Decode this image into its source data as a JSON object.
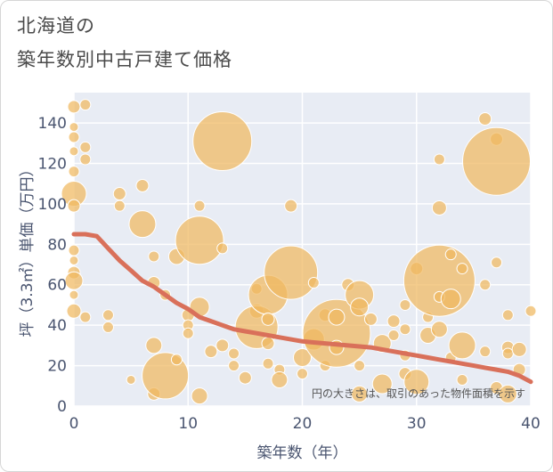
{
  "title_line1": "北海道の",
  "title_line2": "築年数別中古戸建て価格",
  "colors": {
    "bubble": "#f0b860",
    "line": "#d9705a",
    "plot_bg": "#e8ecf4",
    "grid": "#ffffff",
    "axis_text": "#4a5570"
  },
  "chart_data": {
    "type": "scatter",
    "xlabel": "築年数（年）",
    "ylabel": "坪（3.3㎡）単価（万円）",
    "xlim": [
      0,
      40
    ],
    "ylim": [
      0,
      155
    ],
    "xticks": [
      "0",
      "10",
      "20",
      "30",
      "40"
    ],
    "yticks": [
      "0",
      "20",
      "40",
      "60",
      "80",
      "100",
      "120",
      "140"
    ],
    "note": "円の大きさは、取引のあった物件面積を示す",
    "bubbles": [
      {
        "x": 0,
        "y": 148,
        "r": 7
      },
      {
        "x": 1,
        "y": 149,
        "r": 6
      },
      {
        "x": 0,
        "y": 138,
        "r": 5
      },
      {
        "x": 0,
        "y": 133,
        "r": 6
      },
      {
        "x": 1,
        "y": 128,
        "r": 6
      },
      {
        "x": 0,
        "y": 126,
        "r": 5
      },
      {
        "x": 1,
        "y": 122,
        "r": 6
      },
      {
        "x": 0,
        "y": 116,
        "r": 6
      },
      {
        "x": 0,
        "y": 105,
        "r": 14
      },
      {
        "x": 0,
        "y": 99,
        "r": 7
      },
      {
        "x": 0,
        "y": 77,
        "r": 6
      },
      {
        "x": 0,
        "y": 72,
        "r": 5
      },
      {
        "x": 0,
        "y": 66,
        "r": 7
      },
      {
        "x": 0,
        "y": 62,
        "r": 10
      },
      {
        "x": 0,
        "y": 47,
        "r": 8
      },
      {
        "x": 1,
        "y": 44,
        "r": 6
      },
      {
        "x": 0,
        "y": 55,
        "r": 5
      },
      {
        "x": 3,
        "y": 45,
        "r": 6
      },
      {
        "x": 3,
        "y": 39,
        "r": 6
      },
      {
        "x": 4,
        "y": 105,
        "r": 7
      },
      {
        "x": 4,
        "y": 99,
        "r": 6
      },
      {
        "x": 6,
        "y": 109,
        "r": 7
      },
      {
        "x": 6,
        "y": 90,
        "r": 15
      },
      {
        "x": 7,
        "y": 74,
        "r": 6
      },
      {
        "x": 7,
        "y": 61,
        "r": 7
      },
      {
        "x": 8,
        "y": 55,
        "r": 6
      },
      {
        "x": 5,
        "y": 13,
        "r": 5
      },
      {
        "x": 7,
        "y": 30,
        "r": 9
      },
      {
        "x": 7,
        "y": 6,
        "r": 7
      },
      {
        "x": 8,
        "y": 15,
        "r": 26
      },
      {
        "x": 9,
        "y": 74,
        "r": 9
      },
      {
        "x": 9,
        "y": 23,
        "r": 6
      },
      {
        "x": 10,
        "y": 45,
        "r": 7
      },
      {
        "x": 10,
        "y": 40,
        "r": 6
      },
      {
        "x": 10,
        "y": 36,
        "r": 6
      },
      {
        "x": 11,
        "y": 99,
        "r": 6
      },
      {
        "x": 11,
        "y": 82,
        "r": 27
      },
      {
        "x": 11,
        "y": 49,
        "r": 11
      },
      {
        "x": 11,
        "y": 5,
        "r": 9
      },
      {
        "x": 12,
        "y": 27,
        "r": 7
      },
      {
        "x": 13,
        "y": 131,
        "r": 33
      },
      {
        "x": 13,
        "y": 78,
        "r": 6
      },
      {
        "x": 13,
        "y": 30,
        "r": 7
      },
      {
        "x": 14,
        "y": 20,
        "r": 6
      },
      {
        "x": 15,
        "y": 14,
        "r": 7
      },
      {
        "x": 16,
        "y": 58,
        "r": 6
      },
      {
        "x": 16,
        "y": 47,
        "r": 8
      },
      {
        "x": 16,
        "y": 39,
        "r": 24
      },
      {
        "x": 17,
        "y": 55,
        "r": 22
      },
      {
        "x": 17,
        "y": 43,
        "r": 7
      },
      {
        "x": 17,
        "y": 31,
        "r": 7
      },
      {
        "x": 17,
        "y": 21,
        "r": 6
      },
      {
        "x": 18,
        "y": 18,
        "r": 6
      },
      {
        "x": 19,
        "y": 99,
        "r": 7
      },
      {
        "x": 19,
        "y": 66,
        "r": 30
      },
      {
        "x": 18,
        "y": 13,
        "r": 9
      },
      {
        "x": 20,
        "y": 24,
        "r": 10
      },
      {
        "x": 20,
        "y": 16,
        "r": 6
      },
      {
        "x": 21,
        "y": 33,
        "r": 12
      },
      {
        "x": 21,
        "y": 61,
        "r": 6
      },
      {
        "x": 22,
        "y": 45,
        "r": 7
      },
      {
        "x": 22,
        "y": 20,
        "r": 6
      },
      {
        "x": 23,
        "y": 36,
        "r": 38
      },
      {
        "x": 23,
        "y": 44,
        "r": 9
      },
      {
        "x": 23,
        "y": 29,
        "r": 8
      },
      {
        "x": 24,
        "y": 60,
        "r": 7
      },
      {
        "x": 25,
        "y": 55,
        "r": 16
      },
      {
        "x": 25,
        "y": 49,
        "r": 10
      },
      {
        "x": 25,
        "y": 20,
        "r": 6
      },
      {
        "x": 25,
        "y": 6,
        "r": 9
      },
      {
        "x": 26,
        "y": 43,
        "r": 7
      },
      {
        "x": 27,
        "y": 31,
        "r": 10
      },
      {
        "x": 27,
        "y": 11,
        "r": 11
      },
      {
        "x": 28,
        "y": 42,
        "r": 7
      },
      {
        "x": 28,
        "y": 35,
        "r": 6
      },
      {
        "x": 29,
        "y": 50,
        "r": 6
      },
      {
        "x": 29,
        "y": 38,
        "r": 6
      },
      {
        "x": 29,
        "y": 25,
        "r": 6
      },
      {
        "x": 29,
        "y": 16,
        "r": 7
      },
      {
        "x": 30,
        "y": 68,
        "r": 7
      },
      {
        "x": 30,
        "y": 12,
        "r": 14
      },
      {
        "x": 31,
        "y": 35,
        "r": 9
      },
      {
        "x": 31,
        "y": 44,
        "r": 6
      },
      {
        "x": 32,
        "y": 122,
        "r": 6
      },
      {
        "x": 32,
        "y": 98,
        "r": 8
      },
      {
        "x": 32,
        "y": 62,
        "r": 40
      },
      {
        "x": 32,
        "y": 54,
        "r": 6
      },
      {
        "x": 33,
        "y": 75,
        "r": 6
      },
      {
        "x": 33,
        "y": 53,
        "r": 11
      },
      {
        "x": 32,
        "y": 38,
        "r": 9
      },
      {
        "x": 33,
        "y": 24,
        "r": 6
      },
      {
        "x": 34,
        "y": 30,
        "r": 15
      },
      {
        "x": 34,
        "y": 68,
        "r": 6
      },
      {
        "x": 36,
        "y": 142,
        "r": 7
      },
      {
        "x": 36,
        "y": 60,
        "r": 6
      },
      {
        "x": 36,
        "y": 27,
        "r": 6
      },
      {
        "x": 37,
        "y": 132,
        "r": 7
      },
      {
        "x": 37,
        "y": 121,
        "r": 38
      },
      {
        "x": 37,
        "y": 71,
        "r": 6
      },
      {
        "x": 37,
        "y": 9,
        "r": 7
      },
      {
        "x": 38,
        "y": 45,
        "r": 6
      },
      {
        "x": 38,
        "y": 29,
        "r": 7
      },
      {
        "x": 38,
        "y": 26,
        "r": 6
      },
      {
        "x": 38,
        "y": 6,
        "r": 10
      },
      {
        "x": 39,
        "y": 18,
        "r": 7
      },
      {
        "x": 39,
        "y": 28,
        "r": 8
      },
      {
        "x": 40,
        "y": 47,
        "r": 6
      },
      {
        "x": 34,
        "y": 13,
        "r": 6
      },
      {
        "x": 14,
        "y": 26,
        "r": 6
      }
    ],
    "trend": {
      "x": [
        0,
        1,
        2,
        3,
        4,
        5,
        6,
        7,
        8,
        9,
        10,
        11,
        12,
        13,
        14,
        15,
        16,
        17,
        18,
        19,
        20,
        21,
        22,
        23,
        24,
        25,
        26,
        27,
        28,
        29,
        30,
        31,
        32,
        33,
        34,
        35,
        36,
        37,
        38,
        39,
        40
      ],
      "y": [
        85,
        85,
        84,
        78,
        72,
        67,
        62,
        59,
        55,
        51,
        48,
        44,
        42,
        40,
        38,
        37,
        36,
        35,
        34,
        33,
        32,
        31.5,
        31,
        30.5,
        30,
        29.5,
        29,
        28,
        27,
        26,
        25,
        24,
        23,
        22,
        21,
        20,
        19,
        18,
        17,
        15,
        12
      ]
    }
  }
}
